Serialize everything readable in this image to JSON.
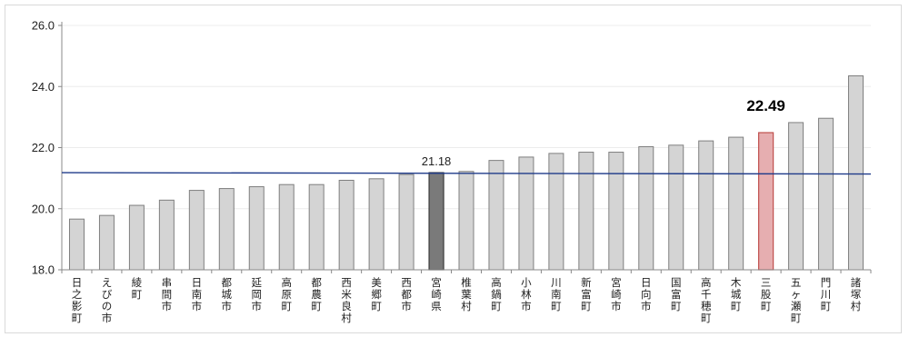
{
  "chart_data": {
    "type": "bar",
    "categories": [
      "日之影町",
      "えびの市",
      "綾町",
      "串間市",
      "日南市",
      "都城市",
      "延岡市",
      "高原町",
      "都農町",
      "西米良村",
      "美郷町",
      "西都市",
      "宮崎県",
      "椎葉村",
      "高鍋町",
      "小林市",
      "川南町",
      "新富町",
      "宮崎市",
      "日向市",
      "国富町",
      "高千穂町",
      "木城町",
      "三股町",
      "五ヶ瀬町",
      "門川町",
      "諸塚村"
    ],
    "values": [
      19.66,
      19.78,
      20.11,
      20.28,
      20.6,
      20.66,
      20.72,
      20.79,
      20.79,
      20.93,
      20.98,
      21.12,
      21.18,
      21.22,
      21.58,
      21.69,
      21.81,
      21.85,
      21.85,
      22.03,
      22.08,
      22.22,
      22.34,
      22.49,
      22.82,
      22.96,
      24.35
    ],
    "ylim": [
      18.0,
      26.0
    ],
    "yticks": [
      "18.0",
      "20.0",
      "22.0",
      "24.0",
      "26.0"
    ],
    "reference_line_value": 21.18,
    "grid": "horizontal",
    "colors": {
      "bar_default": "#d4d4d4",
      "bar_default_stroke": "#7f7f7f",
      "bar_prefecture": "#7a7a7a",
      "bar_prefecture_stroke": "#3a3a3a",
      "bar_highlight": "#e6aeb0",
      "bar_highlight_stroke": "#c0504d",
      "reference_line": "#1f3b8a",
      "grid": "#ececec",
      "axis": "#888888"
    },
    "highlight_index": 23,
    "prefecture_index": 12,
    "data_labels": [
      {
        "index": 12,
        "text": "21.18"
      },
      {
        "index": 23,
        "text": "22.49"
      }
    ]
  }
}
